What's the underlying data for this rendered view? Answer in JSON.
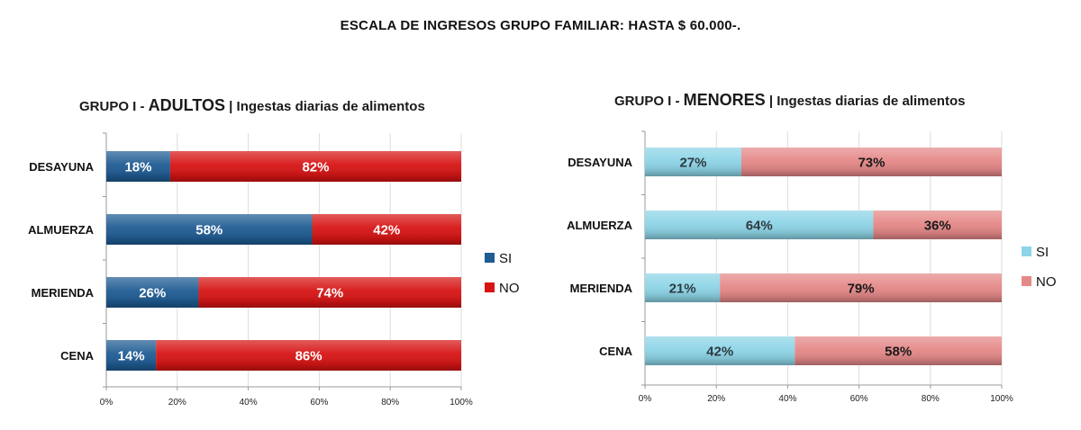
{
  "page": {
    "title": "ESCALA DE INGRESOS GRUPO FAMILIAR: HASTA $ 60.000-."
  },
  "chart_data": [
    {
      "type": "bar",
      "orientation": "horizontal",
      "stacked": true,
      "title_prefix": "GRUPO I - ",
      "title_group": "ADULTOS",
      "title_suffix": " | Ingestas diarias de alimentos",
      "categories": [
        "DESAYUNA",
        "ALMUERZA",
        "MERIENDA",
        "CENA"
      ],
      "series": [
        {
          "name": "SI",
          "values": [
            18,
            58,
            26,
            14
          ],
          "labels": [
            "18%",
            "58%",
            "26%",
            "14%"
          ],
          "color": "#1f5c93",
          "text_color": "#ffffff"
        },
        {
          "name": "NO",
          "values": [
            82,
            42,
            74,
            86
          ],
          "labels": [
            "82%",
            "42%",
            "74%",
            "86%"
          ],
          "color": "#d71414",
          "text_color": "#ffffff"
        }
      ],
      "xlim": [
        0,
        100
      ],
      "x_ticks": [
        "0%",
        "20%",
        "40%",
        "60%",
        "80%",
        "100%"
      ],
      "legend_position": "right",
      "grid": true
    },
    {
      "type": "bar",
      "orientation": "horizontal",
      "stacked": true,
      "title_prefix": "GRUPO I - ",
      "title_group": "MENORES",
      "title_suffix": " | Ingestas diarias de alimentos",
      "categories": [
        "DESAYUNA",
        "ALMUERZA",
        "MERIENDA",
        "CENA"
      ],
      "series": [
        {
          "name": "SI",
          "values": [
            27,
            64,
            21,
            42
          ],
          "labels": [
            "27%",
            "64%",
            "21%",
            "42%"
          ],
          "color": "#8dd4e6",
          "text_color": "#2e3a40"
        },
        {
          "name": "NO",
          "values": [
            73,
            36,
            79,
            58
          ],
          "labels": [
            "73%",
            "36%",
            "79%",
            "58%"
          ],
          "color": "#e58888",
          "text_color": "#1a1a1a"
        }
      ],
      "xlim": [
        0,
        100
      ],
      "x_ticks": [
        "0%",
        "20%",
        "40%",
        "60%",
        "80%",
        "100%"
      ],
      "legend_position": "right",
      "grid": true
    }
  ]
}
